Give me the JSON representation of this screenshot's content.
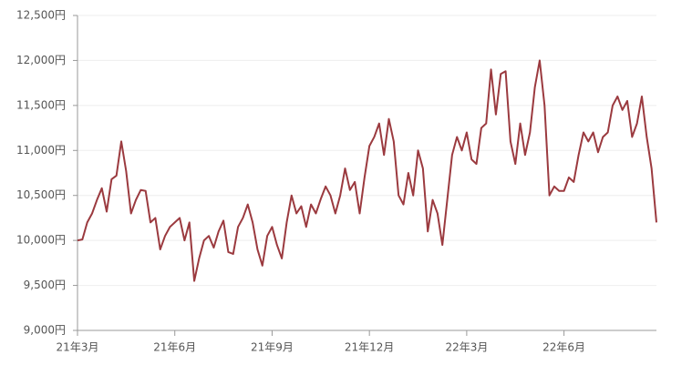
{
  "chart_data": {
    "type": "line",
    "categories": [
      "21年3月",
      null,
      null,
      null,
      null,
      null,
      null,
      null,
      null,
      null,
      null,
      null,
      null,
      null,
      null,
      null,
      null,
      null,
      null,
      null,
      "21年6月",
      null,
      null,
      null,
      null,
      null,
      null,
      null,
      null,
      null,
      null,
      null,
      null,
      null,
      null,
      null,
      null,
      null,
      null,
      null,
      "21年9月",
      null,
      null,
      null,
      null,
      null,
      null,
      null,
      null,
      null,
      null,
      null,
      null,
      null,
      null,
      null,
      null,
      null,
      null,
      null,
      "21年12月",
      null,
      null,
      null,
      null,
      null,
      null,
      null,
      null,
      null,
      null,
      null,
      null,
      null,
      null,
      null,
      null,
      null,
      null,
      null,
      "22年3月",
      null,
      null,
      null,
      null,
      null,
      null,
      null,
      null,
      null,
      null,
      null,
      null,
      null,
      null,
      null,
      null,
      null,
      null,
      null,
      "22年6月",
      null,
      null,
      null,
      null,
      null,
      null,
      null,
      null,
      null,
      null,
      null,
      null,
      null,
      null,
      null,
      null,
      null,
      null,
      null
    ],
    "series": [
      {
        "color": "#9b3a3f",
        "values": [
          10000,
          10010,
          10200,
          10300,
          10450,
          10580,
          10320,
          10680,
          10720,
          11100,
          10770,
          10300,
          10450,
          10560,
          10550,
          10200,
          10250,
          9900,
          10050,
          10150,
          10200,
          10250,
          10000,
          10200,
          9550,
          9800,
          10000,
          10050,
          9920,
          10100,
          10220,
          9870,
          9850,
          10150,
          10250,
          10400,
          10200,
          9900,
          9720,
          10050,
          10150,
          9950,
          9800,
          10200,
          10500,
          10300,
          10380,
          10150,
          10400,
          10300,
          10460,
          10600,
          10500,
          10300,
          10500,
          10800,
          10560,
          10650,
          10300,
          10700,
          11050,
          11150,
          11300,
          10950,
          11350,
          11100,
          10500,
          10400,
          10750,
          10500,
          11000,
          10800,
          10100,
          10450,
          10300,
          9950,
          10450,
          10950,
          11150,
          11000,
          11200,
          10900,
          10850,
          11250,
          11300,
          11900,
          11400,
          11850,
          11880,
          11100,
          10850,
          11300,
          10950,
          11200,
          11700,
          12000,
          11500,
          10500,
          10600,
          10550,
          10550,
          10700,
          10650,
          10950,
          11200,
          11100,
          11200,
          10980,
          11150,
          11200,
          11500,
          11600,
          11450,
          11550,
          11150,
          11300,
          11600,
          11150,
          10800,
          10200
        ]
      }
    ],
    "ylim": [
      9000,
      12500
    ],
    "yticks": [
      {
        "value": 9000,
        "label": "9,000円"
      },
      {
        "value": 9500,
        "label": "9,500円"
      },
      {
        "value": 10000,
        "label": "10,000円"
      },
      {
        "value": 10500,
        "label": "10,500円"
      },
      {
        "value": 11000,
        "label": "11,000円"
      },
      {
        "value": 11500,
        "label": "11,500円"
      },
      {
        "value": 12000,
        "label": "12,000円"
      },
      {
        "value": 12500,
        "label": "12,500円"
      }
    ],
    "grid": true
  }
}
